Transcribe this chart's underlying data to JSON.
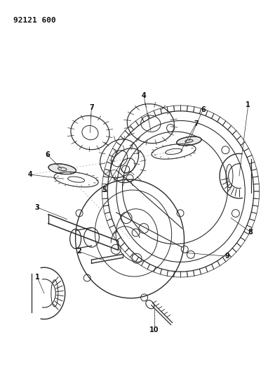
{
  "title": "92121 600",
  "bg_color": "#ffffff",
  "line_color": "#2a2a2a",
  "label_color": "#111111",
  "figsize": [
    3.82,
    5.33
  ],
  "dpi": 100
}
